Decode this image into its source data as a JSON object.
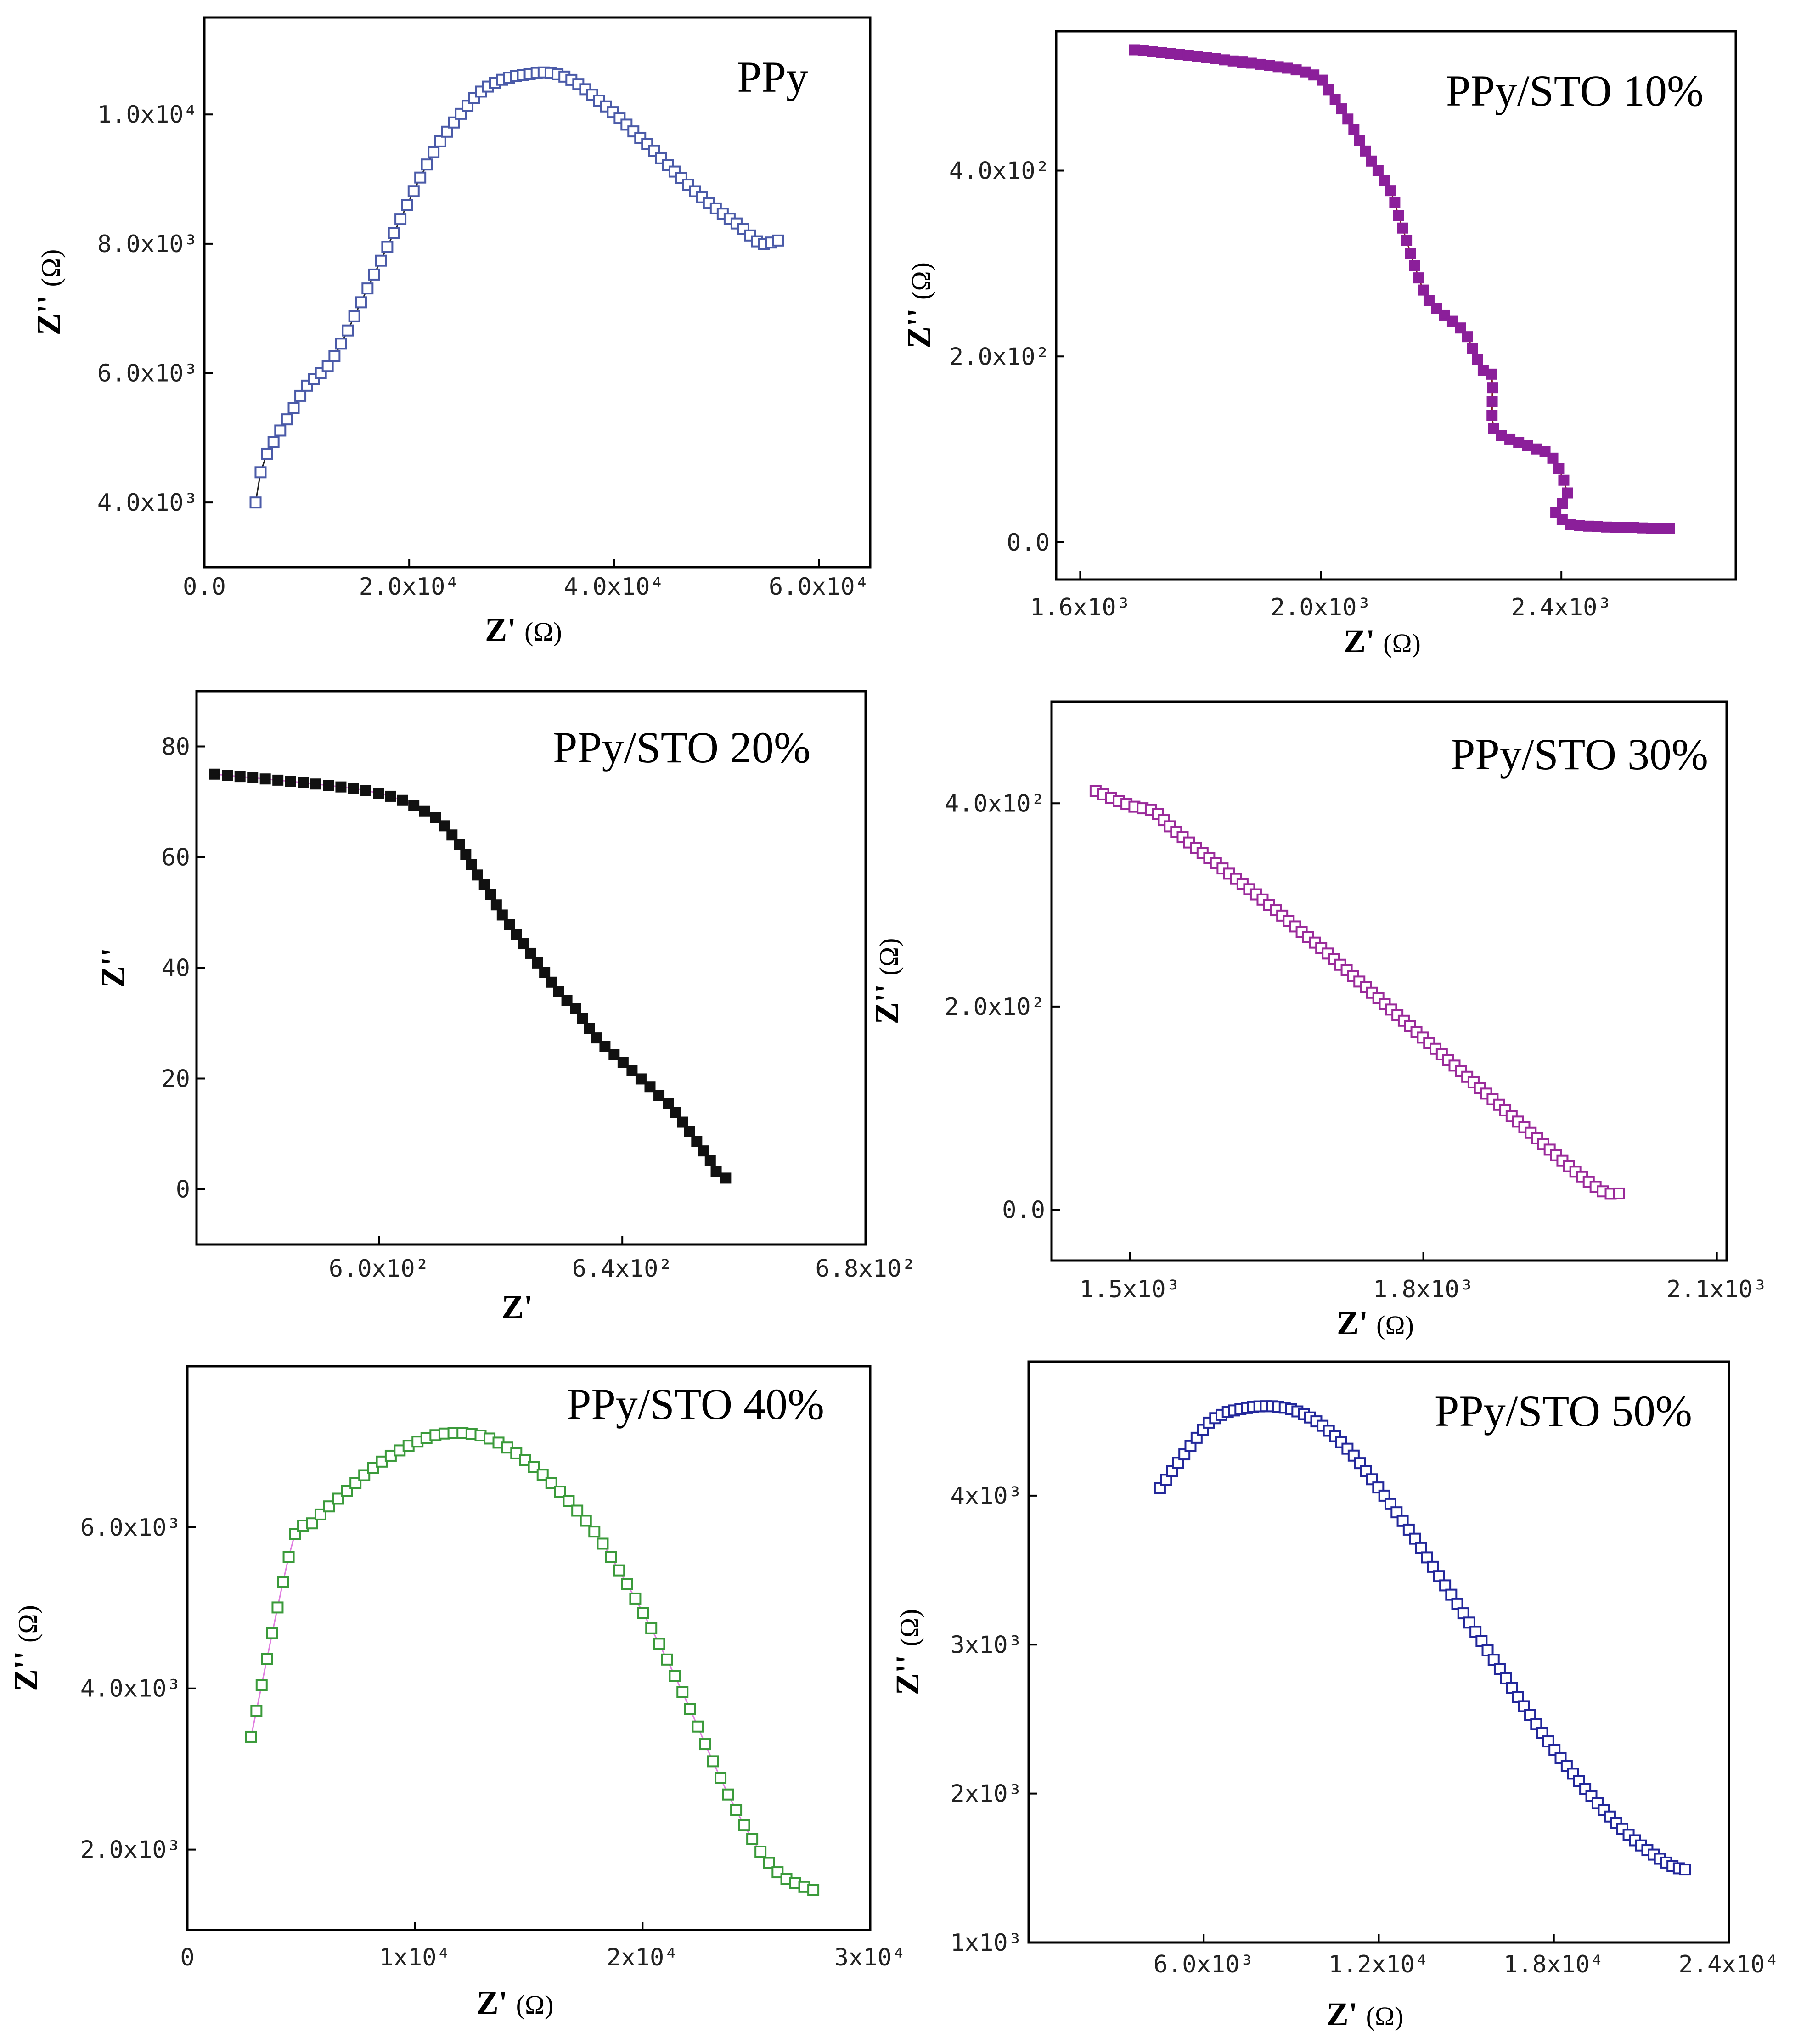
{
  "chart_data": [
    {
      "type": "scatter",
      "title": "PPy",
      "xlabel": "Z'",
      "ylabel": "Z''",
      "unit": "(Ω)",
      "xlim": [
        0,
        65000
      ],
      "ylim": [
        3000,
        11500
      ],
      "xticks": [
        {
          "v": 0,
          "t": "0.0"
        },
        {
          "v": 20000,
          "t": "2.0x10⁴"
        },
        {
          "v": 40000,
          "t": "4.0x10⁴"
        },
        {
          "v": 60000,
          "t": "6.0x10⁴"
        }
      ],
      "yticks": [
        {
          "v": 4000,
          "t": "4.0x10³"
        },
        {
          "v": 6000,
          "t": "6.0x10³"
        },
        {
          "v": 8000,
          "t": "8.0x10³"
        },
        {
          "v": 10000,
          "t": "1.0x10⁴"
        }
      ],
      "series": [
        {
          "color": "#4a5aa8",
          "line": "#222222",
          "marker": "open-square",
          "anchors": [
            [
              5000,
              4000
            ],
            [
              5700,
              4600
            ],
            [
              7000,
              5000
            ],
            [
              8500,
              5400
            ],
            [
              10000,
              5800
            ],
            [
              12000,
              6100
            ],
            [
              13500,
              6500
            ],
            [
              15000,
              7000
            ],
            [
              16500,
              7500
            ],
            [
              18000,
              8000
            ],
            [
              19500,
              8500
            ],
            [
              21000,
              9000
            ],
            [
              22500,
              9450
            ],
            [
              24000,
              9800
            ],
            [
              25500,
              10100
            ],
            [
              27000,
              10350
            ],
            [
              28500,
              10500
            ],
            [
              30000,
              10580
            ],
            [
              31500,
              10620
            ],
            [
              33000,
              10650
            ],
            [
              34500,
              10620
            ],
            [
              36000,
              10520
            ],
            [
              37500,
              10350
            ],
            [
              39000,
              10150
            ],
            [
              40500,
              9950
            ],
            [
              42000,
              9720
            ],
            [
              43500,
              9500
            ],
            [
              45000,
              9250
            ],
            [
              46500,
              9030
            ],
            [
              48000,
              8800
            ],
            [
              49500,
              8600
            ],
            [
              51000,
              8420
            ],
            [
              52500,
              8250
            ],
            [
              53500,
              8100
            ],
            [
              54500,
              8000
            ],
            [
              56000,
              8050
            ]
          ],
          "count": 78
        }
      ]
    },
    {
      "type": "scatter",
      "title": "PPy/STO 10%",
      "xlabel": "Z'",
      "ylabel": "Z''",
      "unit": "(Ω)",
      "xlim": [
        1560,
        2690
      ],
      "ylim": [
        -40,
        550
      ],
      "xticks": [
        {
          "v": 1600,
          "t": "1.6x10³"
        },
        {
          "v": 2000,
          "t": "2.0x10³"
        },
        {
          "v": 2400,
          "t": "2.4x10³"
        }
      ],
      "yticks": [
        {
          "v": 0,
          "t": "0.0"
        },
        {
          "v": 200,
          "t": "2.0x10²"
        },
        {
          "v": 400,
          "t": "4.0x10²"
        }
      ],
      "series": [
        {
          "color": "#8b1f9a",
          "line": "#7a1a1a",
          "marker": "filled-square",
          "anchors": [
            [
              1690,
              530
            ],
            [
              1830,
              520
            ],
            [
              1980,
              505
            ],
            [
              2020,
              480
            ],
            [
              2050,
              450
            ],
            [
              2075,
              420
            ],
            [
              2095,
              400
            ],
            [
              2115,
              380
            ],
            [
              2130,
              350
            ],
            [
              2145,
              320
            ],
            [
              2160,
              290
            ],
            [
              2175,
              265
            ],
            [
              2195,
              250
            ],
            [
              2215,
              240
            ],
            [
              2240,
              225
            ],
            [
              2255,
              205
            ],
            [
              2270,
              185
            ],
            [
              2285,
              180
            ],
            [
              2285,
              160
            ],
            [
              2285,
              140
            ],
            [
              2285,
              125
            ],
            [
              2300,
              115
            ],
            [
              2320,
              110
            ],
            [
              2340,
              105
            ],
            [
              2360,
              100
            ],
            [
              2380,
              95
            ],
            [
              2395,
              80
            ],
            [
              2405,
              65
            ],
            [
              2410,
              50
            ],
            [
              2400,
              40
            ],
            [
              2390,
              30
            ],
            [
              2400,
              25
            ],
            [
              2410,
              20
            ],
            [
              2430,
              18
            ],
            [
              2460,
              17
            ],
            [
              2490,
              16
            ],
            [
              2520,
              16
            ],
            [
              2550,
              15
            ],
            [
              2580,
              15
            ]
          ],
          "count": 80
        }
      ]
    },
    {
      "type": "scatter",
      "title": "PPy/STO 20%",
      "xlabel": "Z'",
      "ylabel": "Z''",
      "unit": "",
      "xlim": [
        570,
        680
      ],
      "ylim": [
        -10,
        90
      ],
      "xticks": [
        {
          "v": 600,
          "t": "6.0x10²"
        },
        {
          "v": 640,
          "t": "6.4x10²"
        },
        {
          "v": 680,
          "t": "6.8x10²"
        }
      ],
      "yticks": [
        {
          "v": 0,
          "t": "0"
        },
        {
          "v": 20,
          "t": "20"
        },
        {
          "v": 40,
          "t": "40"
        },
        {
          "v": 60,
          "t": "60"
        },
        {
          "v": 80,
          "t": "80"
        }
      ],
      "series": [
        {
          "color": "#111111",
          "line": "#e07de0",
          "marker": "filled-square",
          "anchors": [
            [
              573,
              75
            ],
            [
              598,
              72
            ],
            [
              608,
              68
            ],
            [
              612,
              64
            ],
            [
              614,
              61
            ],
            [
              616,
              57
            ],
            [
              618,
              54
            ],
            [
              620,
              50
            ],
            [
              622,
              47
            ],
            [
              624,
              44
            ],
            [
              626,
              41
            ],
            [
              628,
              38
            ],
            [
              630,
              35
            ],
            [
              632,
              33
            ],
            [
              634,
              30
            ],
            [
              636,
              27
            ],
            [
              638,
              25
            ],
            [
              640,
              23
            ],
            [
              642,
              21
            ],
            [
              644,
              19
            ],
            [
              646,
              17
            ],
            [
              648,
              15
            ],
            [
              650,
              12
            ],
            [
              652,
              9
            ],
            [
              654,
              6
            ],
            [
              655,
              4
            ],
            [
              656,
              2.5
            ],
            [
              657,
              2
            ]
          ],
          "count": 58
        }
      ]
    },
    {
      "type": "scatter",
      "title": "PPy/STO 30%",
      "xlabel": "Z'",
      "ylabel": "Z''",
      "unit": "(Ω)",
      "xlim": [
        1420,
        2110
      ],
      "ylim": [
        -50,
        500
      ],
      "xticks": [
        {
          "v": 1500,
          "t": "1.5x10³"
        },
        {
          "v": 1800,
          "t": "1.8x10³"
        },
        {
          "v": 2100,
          "t": "2.1x10³"
        }
      ],
      "yticks": [
        {
          "v": 0,
          "t": "0.0"
        },
        {
          "v": 200,
          "t": "2.0x10²"
        },
        {
          "v": 400,
          "t": "4.0x10²"
        }
      ],
      "series": [
        {
          "color": "#9a2a9a",
          "line": "#e07de0",
          "marker": "open-square",
          "anchors": [
            [
              1465,
              412
            ],
            [
              1500,
              398
            ],
            [
              1525,
              392
            ],
            [
              1540,
              378
            ],
            [
              1560,
              362
            ],
            [
              1580,
              347
            ],
            [
              1600,
              332
            ],
            [
              1620,
              317
            ],
            [
              1640,
              302
            ],
            [
              1660,
              286
            ],
            [
              1680,
              270
            ],
            [
              1700,
              254
            ],
            [
              1720,
              237
            ],
            [
              1740,
              220
            ],
            [
              1760,
              203
            ],
            [
              1780,
              186
            ],
            [
              1800,
              169
            ],
            [
              1820,
              152
            ],
            [
              1840,
              135
            ],
            [
              1860,
              118
            ],
            [
              1880,
              101
            ],
            [
              1900,
              84
            ],
            [
              1920,
              67
            ],
            [
              1940,
              50
            ],
            [
              1960,
              34
            ],
            [
              1980,
              20
            ],
            [
              1990,
              16
            ],
            [
              2000,
              16
            ]
          ],
          "count": 80
        }
      ]
    },
    {
      "type": "scatter",
      "title": "PPy/STO 40%",
      "xlabel": "Z'",
      "ylabel": "Z''",
      "unit": "(Ω)",
      "xlim": [
        0,
        30000
      ],
      "ylim": [
        1000,
        8000
      ],
      "xticks": [
        {
          "v": 0,
          "t": "0"
        },
        {
          "v": 10000,
          "t": "1x10⁴"
        },
        {
          "v": 20000,
          "t": "2x10⁴"
        },
        {
          "v": 30000,
          "t": "3x10⁴"
        }
      ],
      "yticks": [
        {
          "v": 2000,
          "t": "2.0x10³"
        },
        {
          "v": 4000,
          "t": "4.0x10³"
        },
        {
          "v": 6000,
          "t": "6.0x10³"
        }
      ],
      "series": [
        {
          "color": "#3a9a3a",
          "line": "#e07de0",
          "marker": "open-square",
          "anchors": [
            [
              2800,
              3400
            ],
            [
              4600,
              5800
            ],
            [
              5300,
              6000
            ],
            [
              6000,
              6200
            ],
            [
              7000,
              6450
            ],
            [
              8000,
              6700
            ],
            [
              9000,
              6900
            ],
            [
              10000,
              7050
            ],
            [
              11000,
              7150
            ],
            [
              12000,
              7170
            ],
            [
              13000,
              7130
            ],
            [
              14000,
              7000
            ],
            [
              15000,
              6800
            ],
            [
              16000,
              6550
            ],
            [
              17000,
              6250
            ],
            [
              18000,
              5900
            ],
            [
              19000,
              5450
            ],
            [
              20000,
              4950
            ],
            [
              21000,
              4400
            ],
            [
              22000,
              3800
            ],
            [
              23000,
              3150
            ],
            [
              24000,
              2550
            ],
            [
              25000,
              2050
            ],
            [
              26000,
              1700
            ],
            [
              27000,
              1550
            ],
            [
              27500,
              1500
            ]
          ],
          "count": 70
        }
      ]
    },
    {
      "type": "scatter",
      "title": "PPy/STO 50%",
      "xlabel": "Z'",
      "ylabel": "Z''",
      "unit": "(Ω)",
      "xlim": [
        0,
        24000
      ],
      "ylim": [
        1000,
        4900
      ],
      "xticks": [
        {
          "v": 6000,
          "t": "6.0x10³"
        },
        {
          "v": 12000,
          "t": "1.2x10⁴"
        },
        {
          "v": 18000,
          "t": "1.8x10⁴"
        },
        {
          "v": 24000,
          "t": "2.4x10⁴"
        }
      ],
      "yticks": [
        {
          "v": 1000,
          "t": "1x10³"
        },
        {
          "v": 2000,
          "t": "2x10³"
        },
        {
          "v": 3000,
          "t": "3x10³"
        },
        {
          "v": 4000,
          "t": "4x10³"
        }
      ],
      "series": [
        {
          "color": "#22279a",
          "line": "#e07de0",
          "marker": "open-square",
          "anchors": [
            [
              4500,
              4050
            ],
            [
              6000,
              4450
            ],
            [
              6500,
              4530
            ],
            [
              7000,
              4570
            ],
            [
              8000,
              4600
            ],
            [
              9000,
              4580
            ],
            [
              10000,
              4480
            ],
            [
              11000,
              4300
            ],
            [
              12000,
              4050
            ],
            [
              13000,
              3780
            ],
            [
              14000,
              3480
            ],
            [
              15000,
              3180
            ],
            [
              16000,
              2880
            ],
            [
              17000,
              2580
            ],
            [
              18000,
              2300
            ],
            [
              19000,
              2050
            ],
            [
              20000,
              1830
            ],
            [
              21000,
              1650
            ],
            [
              22000,
              1520
            ],
            [
              22500,
              1490
            ]
          ],
          "count": 86
        }
      ]
    }
  ]
}
